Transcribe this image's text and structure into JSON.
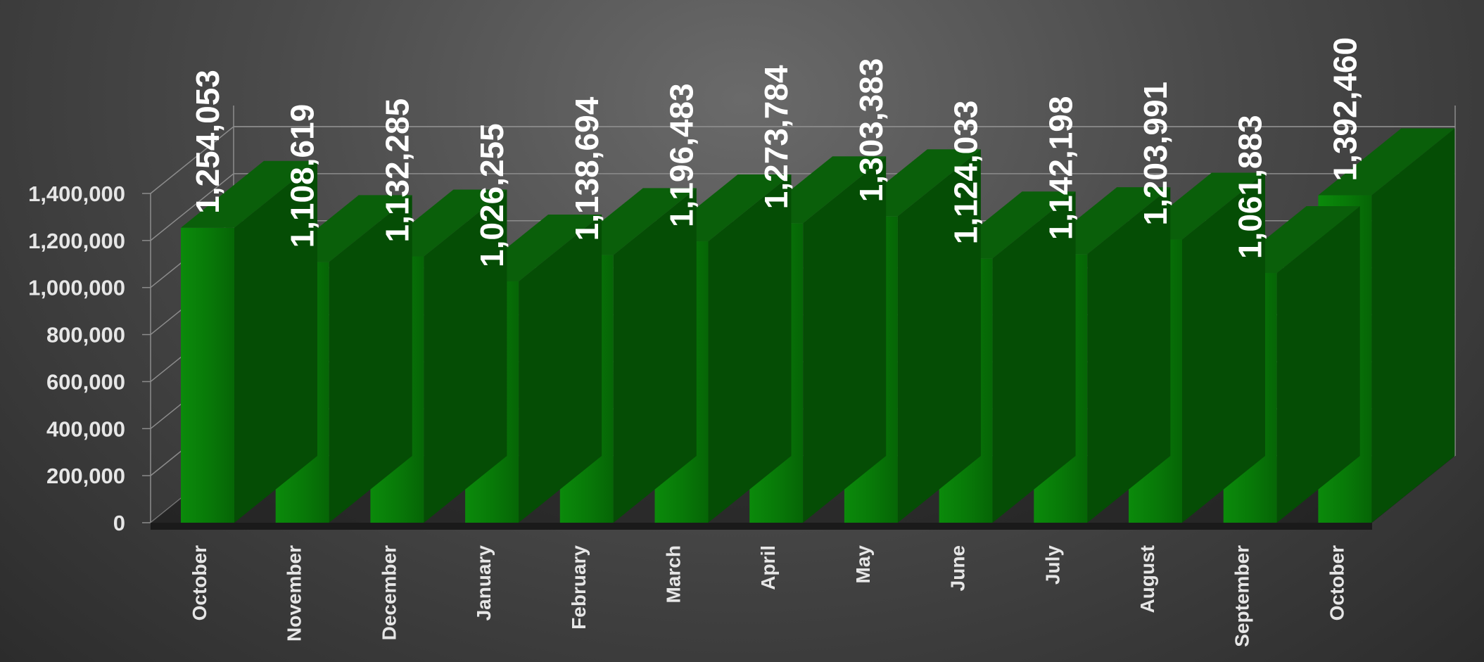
{
  "chart_data": {
    "type": "bar",
    "style": "3d-column",
    "categories": [
      "October",
      "November",
      "December",
      "January",
      "February",
      "March",
      "April",
      "May",
      "June",
      "July",
      "August",
      "September",
      "October"
    ],
    "values": [
      1254053,
      1108619,
      1132285,
      1026255,
      1138694,
      1196483,
      1273784,
      1303383,
      1124033,
      1142198,
      1203991,
      1061883,
      1392460
    ],
    "data_labels": [
      "1,254,053",
      "1,108,619",
      "1,132,285",
      "1,026,255",
      "1,138,694",
      "1,196,483",
      "1,273,784",
      "1,303,383",
      "1,124,033",
      "1,142,198",
      "1,203,991",
      "1,061,883",
      "1,392,460"
    ],
    "y_ticks": [
      "0",
      "200,000",
      "400,000",
      "600,000",
      "800,000",
      "1,000,000",
      "1,200,000",
      "1,400,000"
    ],
    "ylim": [
      0,
      1400000
    ],
    "grid": true,
    "legend": "none",
    "title": "",
    "xlabel": "",
    "ylabel": "",
    "colors": {
      "bar_front": "#087a08",
      "bar_side": "#054d05",
      "bar_top": "#0a5f0a",
      "gridline": "#8c8c8c",
      "text": "#e6e6e6",
      "data_label": "#ffffff"
    }
  }
}
